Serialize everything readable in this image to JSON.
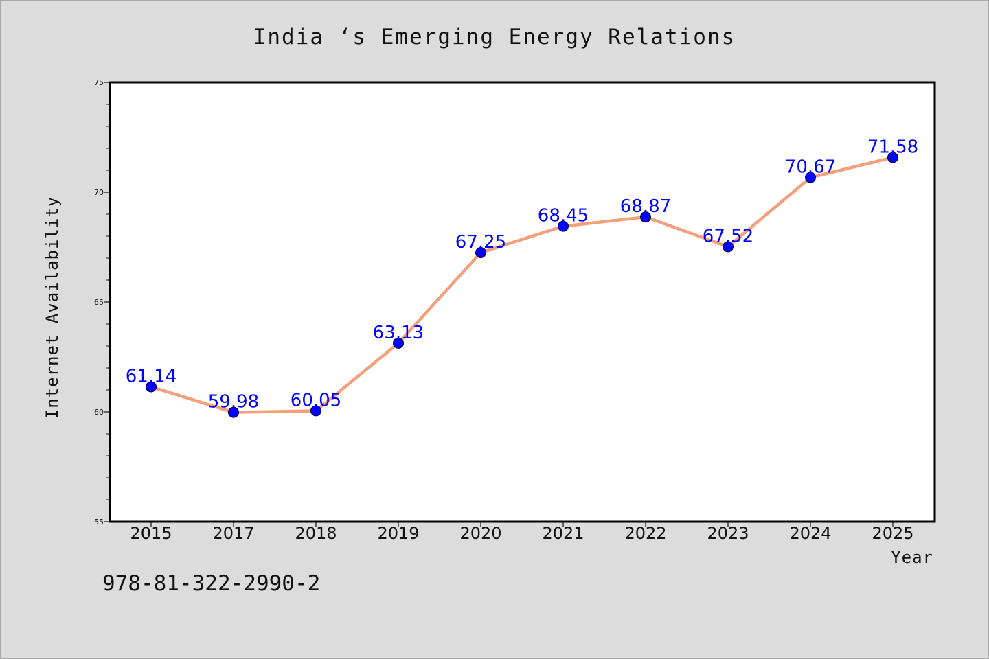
{
  "chart_data": {
    "type": "line",
    "title": "India ‘s Emerging Energy Relations",
    "xlabel": "Year",
    "ylabel": "Internet Availability",
    "categories": [
      "2015",
      "2017",
      "2018",
      "2019",
      "2020",
      "2021",
      "2022",
      "2023",
      "2024",
      "2025"
    ],
    "values": [
      61.14,
      59.98,
      60.05,
      63.13,
      67.25,
      68.45,
      68.87,
      67.52,
      70.67,
      71.58
    ],
    "data_labels": [
      "61.14",
      "59.98",
      "60.05",
      "63.13",
      "67.25",
      "68.45",
      "68.87",
      "67.52",
      "70.67",
      "71.58"
    ],
    "ylim": [
      55,
      75
    ],
    "yticks": [
      55,
      60,
      65,
      70,
      75
    ],
    "ytick_labels": [
      "55",
      "60",
      "65",
      "70",
      "75"
    ],
    "y_minor_step": 1,
    "grid": false,
    "line_color": "#f4a07c",
    "marker_color": "#0000ff",
    "label_color": "#0000ff",
    "background_color": "#dcdcdc",
    "plot_background": "#ffffff"
  },
  "footer": {
    "isbn": "978-81-322-2990-2"
  }
}
